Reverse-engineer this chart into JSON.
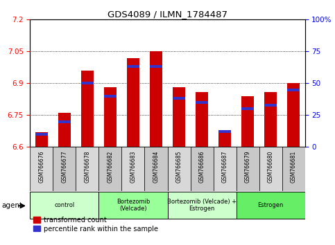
{
  "title": "GDS4089 / ILMN_1784487",
  "samples": [
    "GSM766676",
    "GSM766677",
    "GSM766678",
    "GSM766682",
    "GSM766683",
    "GSM766684",
    "GSM766685",
    "GSM766686",
    "GSM766687",
    "GSM766679",
    "GSM766680",
    "GSM766681"
  ],
  "transformed_count": [
    6.67,
    6.76,
    6.96,
    6.88,
    7.02,
    7.05,
    6.88,
    6.86,
    6.68,
    6.84,
    6.86,
    6.9
  ],
  "percentile_rank": [
    10,
    20,
    50,
    40,
    63,
    63,
    38,
    35,
    12,
    30,
    33,
    45
  ],
  "groups": [
    {
      "label": "control",
      "start": 0,
      "end": 3,
      "color": "#ccffcc"
    },
    {
      "label": "Bortezomib\n(Velcade)",
      "start": 3,
      "end": 6,
      "color": "#99ff99"
    },
    {
      "label": "Bortezomib (Velcade) +\nEstrogen",
      "start": 6,
      "end": 9,
      "color": "#ccffcc"
    },
    {
      "label": "Estrogen",
      "start": 9,
      "end": 12,
      "color": "#66ee66"
    }
  ],
  "ylim_left": [
    6.6,
    7.2
  ],
  "ylim_right": [
    0,
    100
  ],
  "yticks_left": [
    6.6,
    6.75,
    6.9,
    7.05,
    7.2
  ],
  "yticks_right": [
    0,
    25,
    50,
    75,
    100
  ],
  "bar_color_red": "#cc0000",
  "bar_color_blue": "#3333cc",
  "bar_width": 0.55,
  "legend_red": "transformed count",
  "legend_blue": "percentile rank within the sample",
  "agent_label": "agent"
}
